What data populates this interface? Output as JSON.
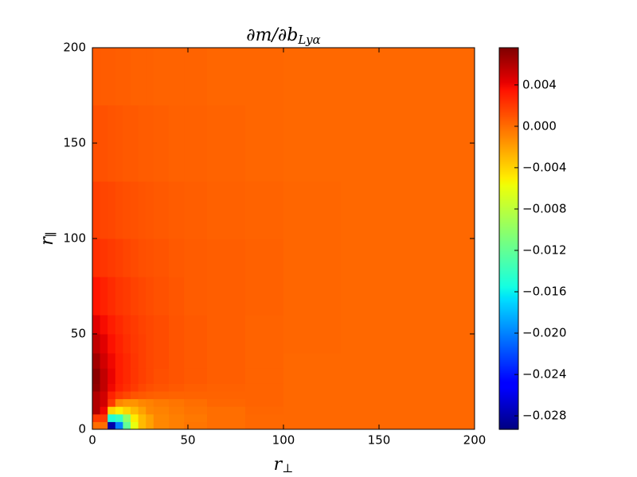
{
  "chart_data": {
    "type": "heatmap",
    "title": "∂m/∂b",
    "title_subscript": "Lyα",
    "x_label": "r",
    "x_label_subscript": "⊥",
    "y_label": "r",
    "y_label_subscript": "∥",
    "xlim": [
      0,
      200
    ],
    "ylim": [
      0,
      200
    ],
    "xticks": [
      0,
      50,
      100,
      150,
      200
    ],
    "yticks": [
      0,
      50,
      100,
      150,
      200
    ],
    "x_edges": [
      0,
      4,
      8,
      12,
      16,
      20,
      24,
      28,
      32,
      40,
      48,
      60,
      80,
      100,
      130,
      200
    ],
    "y_edges": [
      0,
      4,
      8,
      12,
      16,
      20,
      24,
      32,
      40,
      50,
      60,
      80,
      100,
      130,
      170,
      200
    ],
    "colormap": "jet",
    "clim": [
      -0.0293,
      0.0076
    ],
    "cticks": [
      {
        "value": -0.028,
        "label": "−0.028"
      },
      {
        "value": -0.024,
        "label": "−0.024"
      },
      {
        "value": -0.02,
        "label": "−0.020"
      },
      {
        "value": -0.016,
        "label": "−0.016"
      },
      {
        "value": -0.012,
        "label": "−0.012"
      },
      {
        "value": -0.008,
        "label": "−0.008"
      },
      {
        "value": -0.004,
        "label": "−0.004"
      },
      {
        "value": 0,
        "label": "0.000"
      },
      {
        "value": 0.004,
        "label": "0.004"
      }
    ],
    "values": [
      [
        0.0,
        0.0,
        -0.028,
        -0.02,
        -0.012,
        -0.006,
        -0.003,
        -0.002,
        -0.001,
        -0.0007,
        -0.0003,
        0.0,
        0.0002,
        0.0002,
        0.0002
      ],
      [
        0.002,
        0.002,
        -0.015,
        -0.014,
        -0.01,
        -0.005,
        -0.003,
        -0.002,
        -0.001,
        -0.0007,
        -0.0004,
        0.0,
        0.0002,
        0.0002,
        0.0002
      ],
      [
        0.006,
        0.004,
        -0.004,
        -0.005,
        -0.004,
        -0.003,
        -0.002,
        -0.001,
        -0.0008,
        -0.0005,
        -0.0002,
        0.0,
        0.0003,
        0.0002,
        0.0002
      ],
      [
        0.006,
        0.005,
        0.002,
        -0.001,
        -0.0015,
        -0.0015,
        -0.001,
        -0.0008,
        -0.0005,
        -0.0003,
        0.0,
        0.0003,
        0.0004,
        0.0002,
        0.0002
      ],
      [
        0.006,
        0.005,
        0.003,
        0.002,
        0.0015,
        0.001,
        0.0008,
        0.0006,
        0.0005,
        0.0004,
        0.0004,
        0.0004,
        0.0004,
        0.0002,
        0.0002
      ],
      [
        0.007,
        0.0055,
        0.004,
        0.003,
        0.0025,
        0.002,
        0.0015,
        0.0012,
        0.001,
        0.0008,
        0.0006,
        0.0005,
        0.0004,
        0.0002,
        0.0002
      ],
      [
        0.0072,
        0.0055,
        0.0042,
        0.0032,
        0.0027,
        0.0022,
        0.0018,
        0.0015,
        0.0012,
        0.001,
        0.0008,
        0.0006,
        0.0004,
        0.0002,
        0.0002
      ],
      [
        0.0065,
        0.005,
        0.004,
        0.0032,
        0.0027,
        0.0022,
        0.0018,
        0.0015,
        0.0013,
        0.001,
        0.0008,
        0.0006,
        0.0004,
        0.0002,
        0.0002
      ],
      [
        0.0055,
        0.0045,
        0.0036,
        0.003,
        0.0025,
        0.0021,
        0.0018,
        0.0015,
        0.0013,
        0.001,
        0.0008,
        0.0006,
        0.0004,
        0.0003,
        0.0002
      ],
      [
        0.0045,
        0.0038,
        0.0032,
        0.0027,
        0.0023,
        0.002,
        0.0017,
        0.0015,
        0.0013,
        0.001,
        0.0008,
        0.0006,
        0.0004,
        0.0003,
        0.0002
      ],
      [
        0.0035,
        0.003,
        0.0026,
        0.0022,
        0.002,
        0.0017,
        0.0015,
        0.0013,
        0.0011,
        0.0009,
        0.0007,
        0.0006,
        0.0005,
        0.0003,
        0.0002
      ],
      [
        0.0025,
        0.0022,
        0.002,
        0.0018,
        0.0016,
        0.0014,
        0.0012,
        0.0011,
        0.001,
        0.0008,
        0.0007,
        0.0006,
        0.0005,
        0.0003,
        0.0002
      ],
      [
        0.0018,
        0.0016,
        0.0015,
        0.0013,
        0.0012,
        0.0011,
        0.001,
        0.0009,
        0.0008,
        0.0007,
        0.0006,
        0.0005,
        0.0004,
        0.0003,
        0.0002
      ],
      [
        0.0012,
        0.0011,
        0.001,
        0.0009,
        0.0008,
        0.0008,
        0.0007,
        0.0007,
        0.0006,
        0.0005,
        0.0005,
        0.0004,
        0.0003,
        0.0002,
        0.0002
      ],
      [
        0.0008,
        0.0007,
        0.0007,
        0.0006,
        0.0006,
        0.0005,
        0.0005,
        0.0005,
        0.0004,
        0.0004,
        0.0004,
        0.0003,
        0.0003,
        0.0002,
        0.0002
      ]
    ]
  }
}
